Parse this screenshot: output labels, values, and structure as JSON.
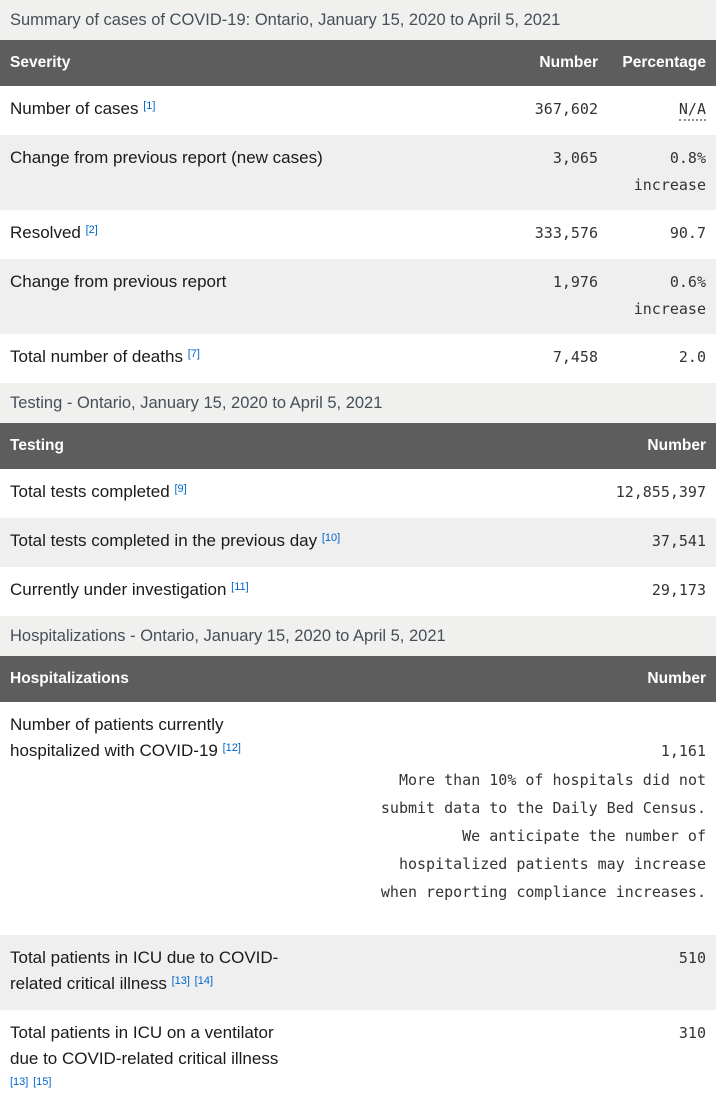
{
  "page_title": "Summary of cases of COVID-19",
  "colors": {
    "link_blue": "#0066cc",
    "table_header_bg": "#5d5d5d",
    "table_header_text": "#ffffff",
    "caption_bg": "#f0f0ef",
    "caption_text": "#454f58",
    "stripe_bg": "#efefef",
    "label_text": "#1a1a1a",
    "value_text": "#333333"
  },
  "tables": [
    {
      "caption": "Summary of cases of COVID-19: Ontario, January 15, 2020 to April 5, 2021",
      "columns": [
        "Severity",
        "Number",
        "Percentage"
      ],
      "rows": [
        {
          "label": "Number of cases",
          "footnotes": [
            "[1]"
          ],
          "number": "367,602",
          "percentage": "N/A",
          "na": true
        },
        {
          "label": "Change from previous report (new cases)",
          "footnotes": [],
          "number": "3,065",
          "percentage": "0.8%",
          "percentage_note": "increase"
        },
        {
          "label": "Resolved",
          "footnotes": [
            "[2]"
          ],
          "number": "333,576",
          "percentage": "90.7"
        },
        {
          "label": "Change from previous report",
          "footnotes": [],
          "number": "1,976",
          "percentage": "0.6%",
          "percentage_note": "increase"
        },
        {
          "label": "Total number of deaths",
          "footnotes": [
            "[7]"
          ],
          "number": "7,458",
          "percentage": "2.0"
        }
      ]
    },
    {
      "caption": "Testing - Ontario, January 15, 2020 to April 5, 2021",
      "columns": [
        "Testing",
        "Number"
      ],
      "rows": [
        {
          "label": "Total tests completed",
          "footnotes": [
            "[9]"
          ],
          "number": "12,855,397"
        },
        {
          "label": "Total tests completed in the previous day",
          "footnotes": [
            "[10]"
          ],
          "number": "37,541"
        },
        {
          "label": "Currently under investigation",
          "footnotes": [
            "[11]"
          ],
          "number": "29,173"
        }
      ]
    },
    {
      "caption": "Hospitalizations - Ontario, January 15, 2020 to April 5, 2021",
      "columns": [
        "Hospitalizations",
        "Number"
      ],
      "rows": [
        {
          "label": "Number of patients currently hospitalized with COVID-19",
          "footnotes": [
            "[12]"
          ],
          "number": "1,161",
          "note": "More than 10% of hospitals did not submit data to the Daily Bed Census. We anticipate the number of hospitalized patients may increase when reporting compliance increases."
        },
        {
          "label": "Total patients in ICU due to COVID-related critical illness",
          "footnotes": [
            "[13]",
            "[14]"
          ],
          "number": "510"
        },
        {
          "label": "Total patients in ICU on a ventilator due to COVID-related critical illness",
          "footnotes": [
            "[13]",
            "[15]"
          ],
          "number": "310"
        }
      ]
    }
  ]
}
